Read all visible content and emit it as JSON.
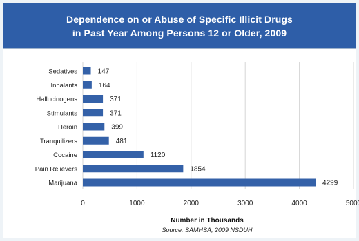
{
  "chart_data": {
    "type": "bar",
    "orientation": "horizontal",
    "title_lines": [
      "Dependence on or Abuse of Specific Illicit Drugs",
      "in Past Year Among Persons 12 or Older, 2009"
    ],
    "categories": [
      "Sedatives",
      "Inhalants",
      "Hallucinogens",
      "Stimulants",
      "Heroin",
      "Tranquilizers",
      "Cocaine",
      "Pain Relievers",
      "Marijuana"
    ],
    "values": [
      147,
      164,
      371,
      371,
      399,
      481,
      1120,
      1854,
      4299
    ],
    "value_labels": [
      "147",
      "164",
      "371",
      "371",
      "399",
      "481",
      "1120",
      "1854",
      "4299"
    ],
    "xlim": [
      0,
      5000
    ],
    "xticks": [
      0,
      1000,
      2000,
      3000,
      4000,
      5000
    ],
    "xtick_labels": [
      "0",
      "1000",
      "2000",
      "3000",
      "4000",
      "5000"
    ],
    "xlabel": "Number in Thousands",
    "ylabel": "",
    "source": "Source: SAMHSA, 2009 NSDUH",
    "grid": "vertical",
    "bar_color": "#3461a8",
    "title_background": "#2e5ea8",
    "grid_color": "#d5d5d5"
  }
}
